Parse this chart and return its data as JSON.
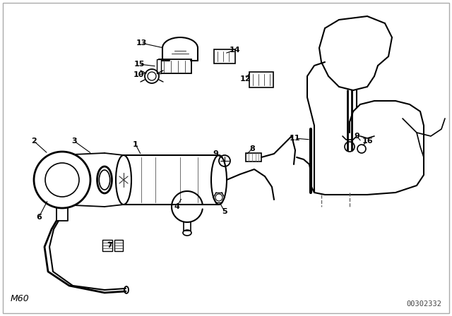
{
  "background_color": "#ffffff",
  "text_color": "#000000",
  "line_color": "#000000",
  "bottom_left_text": "M60",
  "bottom_right_text": "00302332",
  "fig_width": 6.4,
  "fig_height": 4.48,
  "dpi": 100
}
